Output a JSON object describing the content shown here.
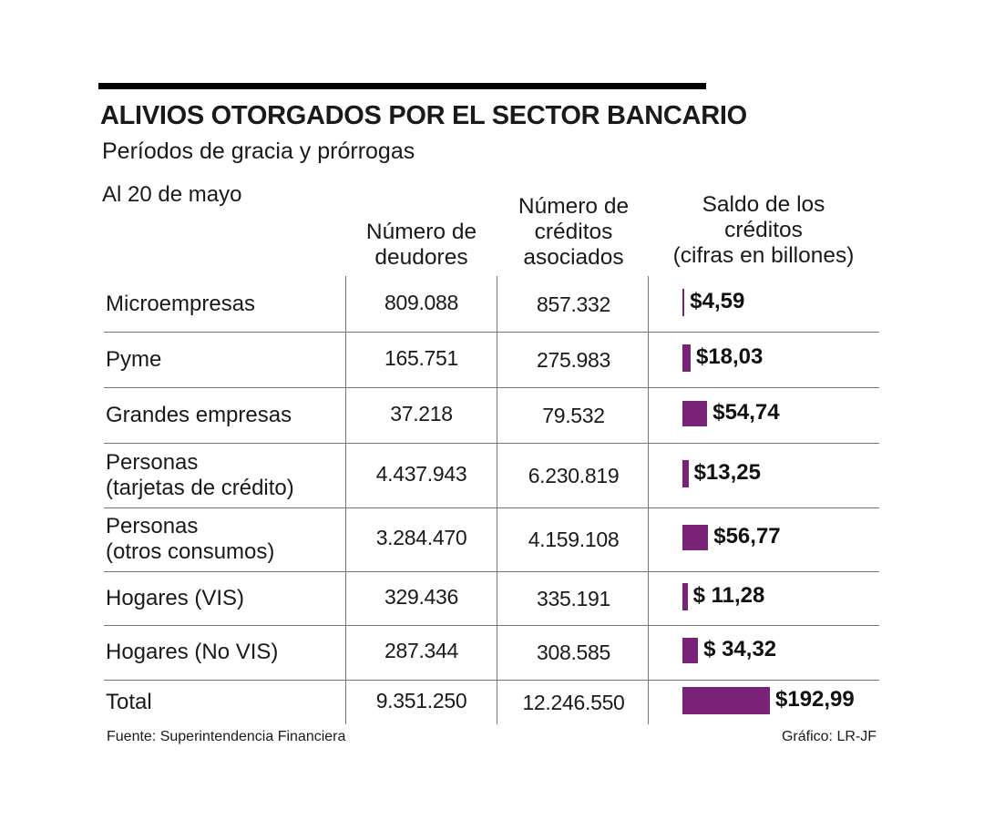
{
  "title": "ALIVIOS OTORGADOS POR EL SECTOR BANCARIO",
  "subtitle": "Períodos de gracia y prórrogas",
  "date_note": "Al 20 de mayo",
  "columns": {
    "deudores": "Número de\ndeudores",
    "creditos": "Número de\ncréditos\nasociados",
    "saldo": "Saldo de los\ncréditos\n(cifras en  billones)"
  },
  "bar_color": "#7a2178",
  "chart_data": {
    "type": "table",
    "title": "ALIVIOS OTORGADOS POR EL SECTOR BANCARIO",
    "subtitle": "Períodos de gracia y prórrogas",
    "columns": [
      "Número de deudores",
      "Número de créditos asociados",
      "Saldo de los créditos (cifras en  billones)"
    ],
    "rows": [
      {
        "label": "Microempresas",
        "deudores": "809.088",
        "creditos": "857.332",
        "saldo_label": "$4,59",
        "saldo": 4.59
      },
      {
        "label": "Pyme",
        "deudores": "165.751",
        "creditos": "275.983",
        "saldo_label": "$18,03",
        "saldo": 18.03
      },
      {
        "label": "Grandes empresas",
        "deudores": "37.218",
        "creditos": "79.532",
        "saldo_label": "$54,74",
        "saldo": 54.74
      },
      {
        "label": "Personas\n(tarjetas de crédito)",
        "deudores": "4.437.943",
        "creditos": "6.230.819",
        "saldo_label": "$13,25",
        "saldo": 13.25
      },
      {
        "label": "Personas\n(otros consumos)",
        "deudores": "3.284.470",
        "creditos": "4.159.108",
        "saldo_label": "$56,77",
        "saldo": 56.77
      },
      {
        "label": "Hogares (VIS)",
        "deudores": "329.436",
        "creditos": "335.191",
        "saldo_label": "$ 11,28",
        "saldo": 11.28
      },
      {
        "label": "Hogares (No VIS)",
        "deudores": "287.344",
        "creditos": "308.585",
        "saldo_label": "$ 34,32",
        "saldo": 34.32
      },
      {
        "label": "Total",
        "deudores": "9.351.250",
        "creditos": "12.246.550",
        "saldo_label": "$192,99",
        "saldo": 192.99
      }
    ]
  },
  "footer": {
    "source": "Fuente:  Superintendencia Financiera",
    "credit": "Gráfico: LR-JF"
  }
}
